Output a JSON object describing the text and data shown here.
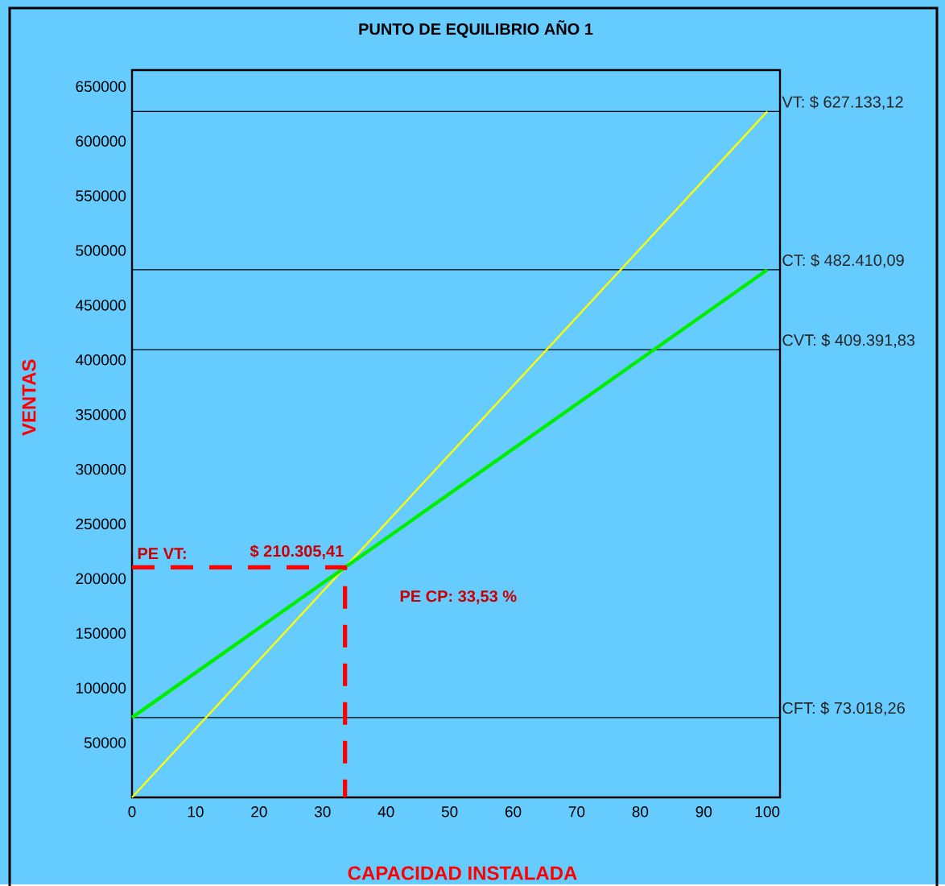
{
  "chart_data": {
    "type": "line",
    "title": "PUNTO DE EQUILIBRIO AÑO 1",
    "xlabel": "CAPACIDAD INSTALADA",
    "ylabel": "VENTAS",
    "xlim": [
      0,
      102
    ],
    "xticks": [
      0,
      10,
      20,
      30,
      40,
      50,
      60,
      70,
      80,
      90,
      100
    ],
    "ylim": [
      0,
      665000
    ],
    "yticks": [
      50000,
      100000,
      150000,
      200000,
      250000,
      300000,
      350000,
      400000,
      450000,
      500000,
      550000,
      600000,
      650000
    ],
    "series": [
      {
        "color": "#ffff00",
        "x": [
          0,
          100
        ],
        "values": [
          0,
          627133.12
        ]
      },
      {
        "color": "#00ee00",
        "x": [
          0,
          100
        ],
        "values": [
          73018.26,
          482410.09
        ]
      },
      {
        "color": "#ff0000",
        "line_style": "dashed",
        "x": [
          0,
          33.53,
          33.53
        ],
        "values": [
          210305.41,
          210305.41,
          0
        ]
      }
    ],
    "ref_lines": [
      {
        "axis": "y",
        "value": 627133.12,
        "label": "VT:      $ 627.133,12",
        "color": "#000000"
      },
      {
        "axis": "y",
        "value": 482410.09,
        "label": "CT:      $ 482.410,09",
        "color": "#000000"
      },
      {
        "axis": "y",
        "value": 409391.83,
        "label": "CVT:    $ 409.391,83",
        "color": "#000000"
      },
      {
        "axis": "y",
        "value": 73018.26,
        "label": "CFT:       $ 73.018,26",
        "color": "#000000"
      }
    ],
    "annotations": [
      "PE VT:",
      "$ 210.305,41",
      "PE CP:   33,53   %"
    ]
  }
}
